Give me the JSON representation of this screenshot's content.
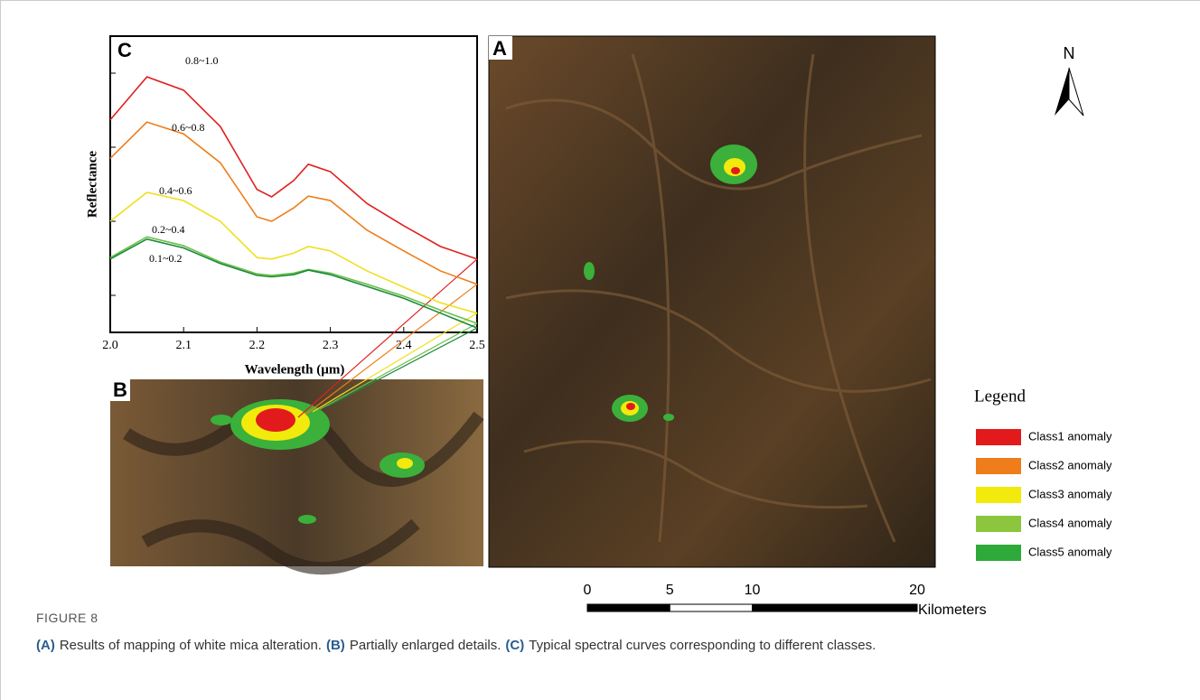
{
  "panels": {
    "a": "A",
    "b": "B",
    "c": "C"
  },
  "chart_data": {
    "type": "line",
    "ylabel": "Reflectance",
    "xlabel": "Wavelength (µm)",
    "x": [
      2.0,
      2.05,
      2.1,
      2.15,
      2.2,
      2.22,
      2.25,
      2.27,
      2.3,
      2.35,
      2.4,
      2.45,
      2.5
    ],
    "xlim": [
      2.0,
      2.5
    ],
    "xticks": [
      {
        "value": 2.0,
        "label": "2.0"
      },
      2.1,
      2.2,
      2.3,
      2.4,
      2.5
    ],
    "ylim": [
      0.5,
      4.5
    ],
    "yticks": [
      1,
      2,
      3,
      4
    ],
    "series": [
      {
        "name": "0.8~1.0",
        "color": "#e02020",
        "values": [
          3.37,
          3.95,
          3.77,
          3.28,
          2.43,
          2.33,
          2.55,
          2.77,
          2.67,
          2.24,
          1.94,
          1.66,
          1.49
        ]
      },
      {
        "name": "0.6~0.8",
        "color": "#ee7d1a",
        "values": [
          2.85,
          3.34,
          3.18,
          2.79,
          2.06,
          2.0,
          2.18,
          2.34,
          2.28,
          1.88,
          1.6,
          1.33,
          1.15
        ]
      },
      {
        "name": "0.4~0.6",
        "color": "#f0e020",
        "values": [
          2.0,
          2.39,
          2.28,
          2.0,
          1.51,
          1.49,
          1.57,
          1.66,
          1.6,
          1.33,
          1.11,
          0.9,
          0.76
        ]
      },
      {
        "name": "0.2~0.4",
        "color": "#6cc04a",
        "values": [
          1.51,
          1.79,
          1.67,
          1.45,
          1.29,
          1.27,
          1.3,
          1.35,
          1.3,
          1.15,
          0.99,
          0.8,
          0.62
        ]
      },
      {
        "name": "0.1~0.2",
        "color": "#1a8a3a",
        "values": [
          1.49,
          1.76,
          1.64,
          1.43,
          1.27,
          1.25,
          1.28,
          1.34,
          1.28,
          1.12,
          0.96,
          0.76,
          0.56
        ]
      }
    ]
  },
  "legend": {
    "title": "Legend",
    "items": [
      {
        "label": "Class1 anomaly",
        "color": "#e31a1c"
      },
      {
        "label": "Class2 anomaly",
        "color": "#ee7d1a"
      },
      {
        "label": "Class3 anomaly",
        "color": "#f2ea0c"
      },
      {
        "label": "Class4 anomaly",
        "color": "#8cc63f"
      },
      {
        "label": "Class5 anomaly",
        "color": "#2eaa3a"
      }
    ]
  },
  "north": "N",
  "scale_bar": {
    "ticks": [
      0,
      5,
      10,
      20
    ],
    "unit": "Kilometers"
  },
  "caption": {
    "label": "FIGURE 8",
    "parts": [
      {
        "tag": "(A)",
        "text": "Results of mapping of white mica alteration."
      },
      {
        "tag": "(B)",
        "text": "Partially enlarged details."
      },
      {
        "tag": "(C)",
        "text": "Typical spectral curves corresponding to different classes."
      }
    ]
  }
}
